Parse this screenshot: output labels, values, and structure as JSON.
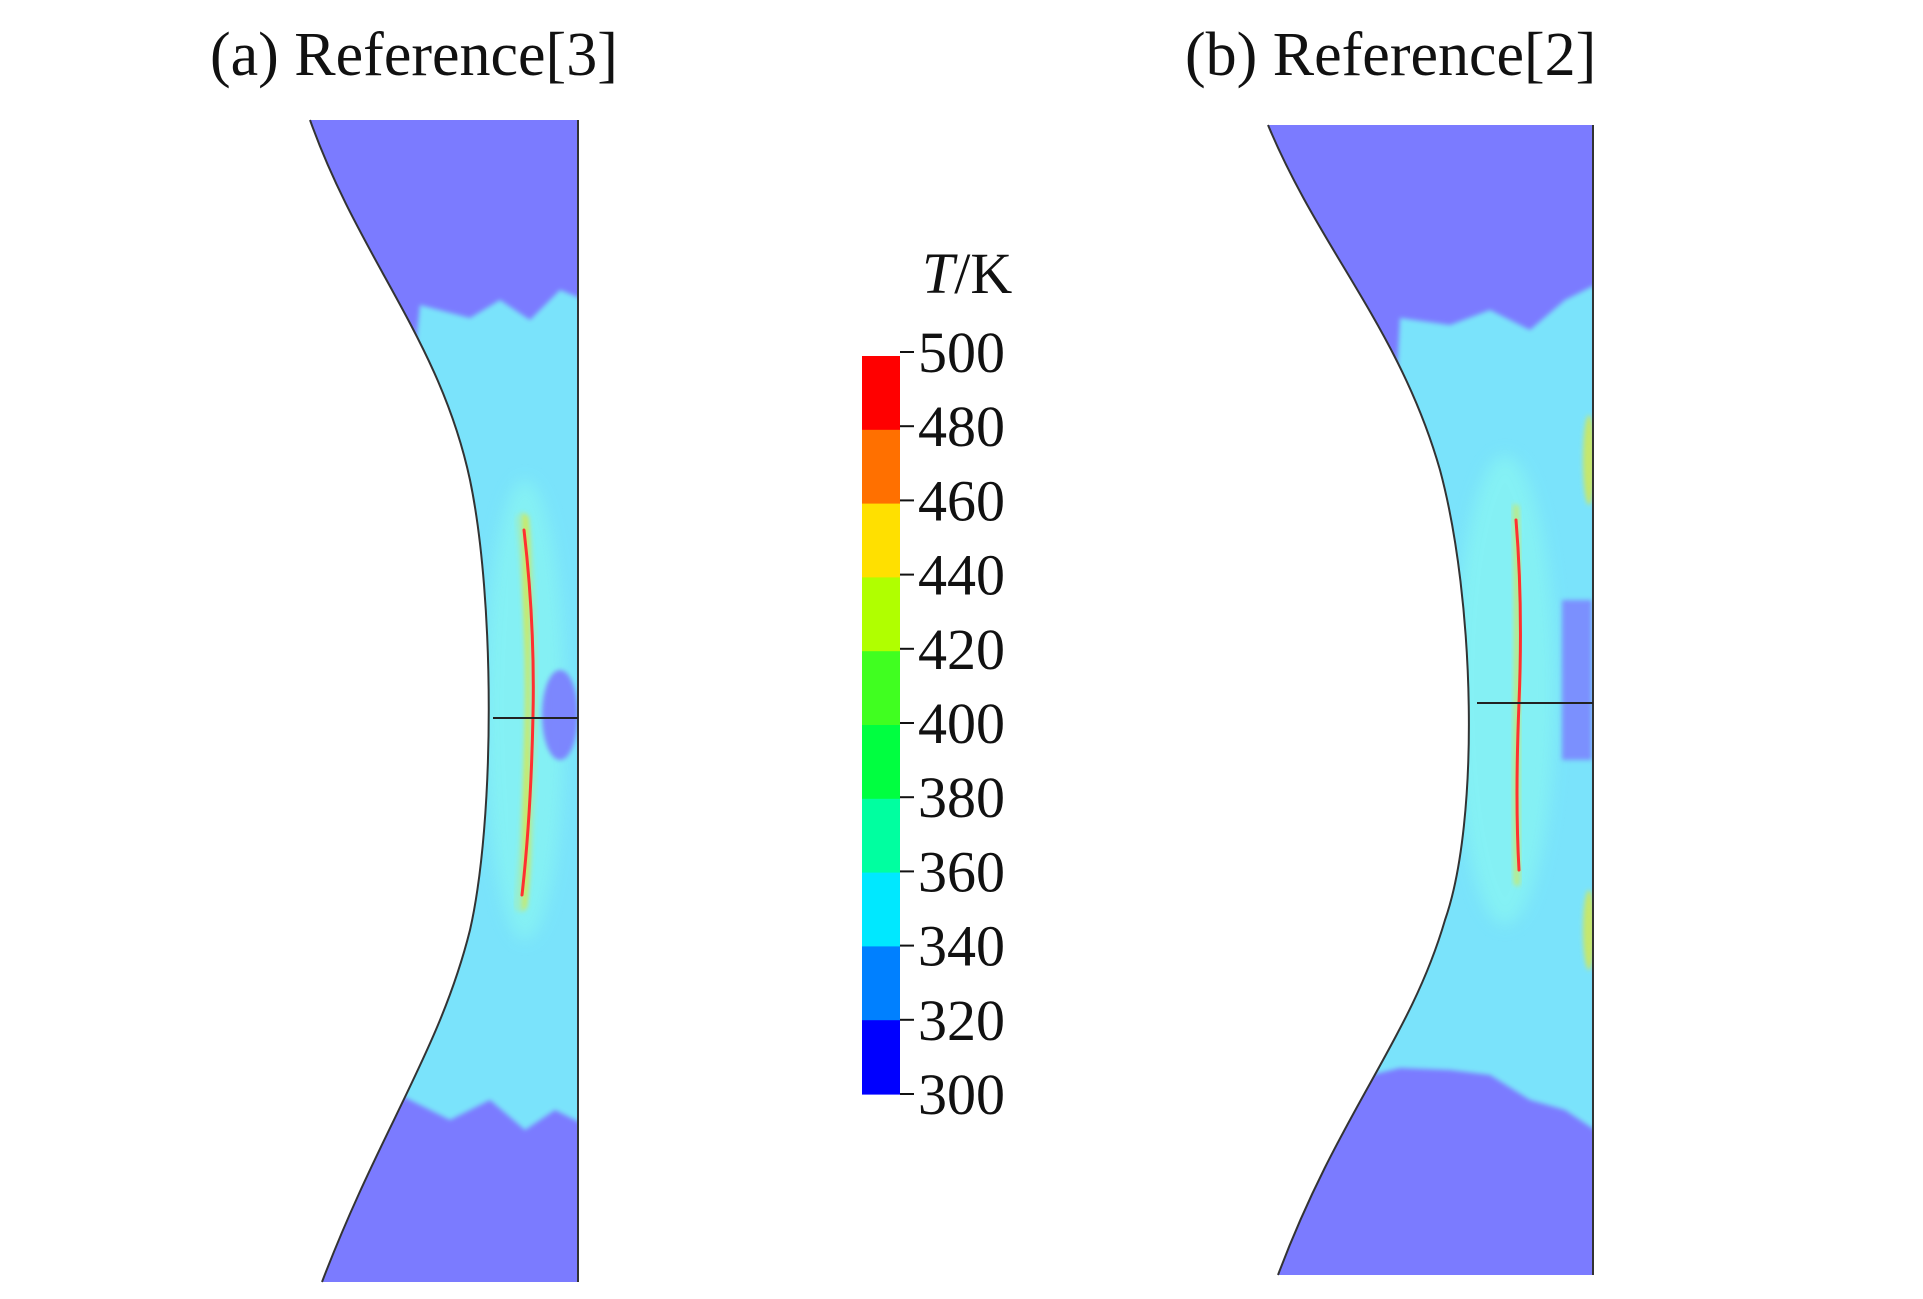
{
  "panels": [
    {
      "title": "(a) Reference[3]"
    },
    {
      "title": "(b) Reference[2]"
    }
  ],
  "colorbar": {
    "var": "T",
    "unit": "/K",
    "ticks": [
      "500",
      "480",
      "460",
      "440",
      "420",
      "400",
      "380",
      "360",
      "340",
      "320",
      "300"
    ],
    "colors": [
      "#ff0000",
      "#ff7000",
      "#ffe000",
      "#b0ff00",
      "#40ff20",
      "#00ff40",
      "#00ffa0",
      "#00e8ff",
      "#0080ff",
      "#0000ff"
    ]
  },
  "palette": {
    "cold": "#7b7bff",
    "warm": "#7ae3fb",
    "warmer": "#86f3f3",
    "hot_edge": "#d9e84a",
    "hot_core": "#ff3030"
  }
}
